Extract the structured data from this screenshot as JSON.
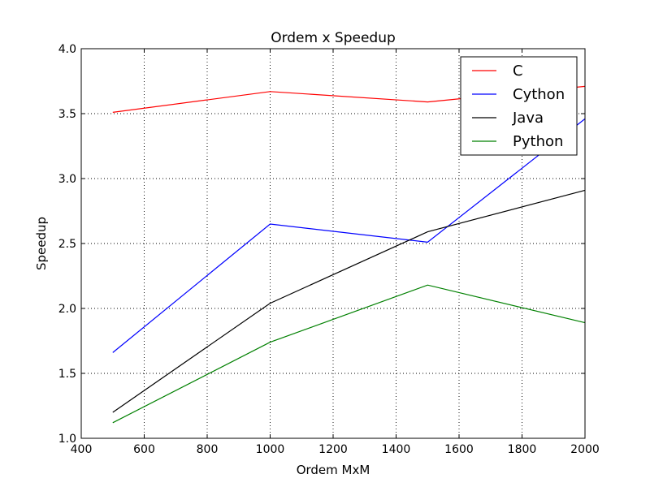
{
  "chart_data": {
    "type": "line",
    "title": "Ordem x Speedup",
    "xlabel": "Ordem MxM",
    "ylabel": "Speedup",
    "xlim": [
      400,
      2000
    ],
    "ylim": [
      1.0,
      4.0
    ],
    "xticks": [
      "400",
      "600",
      "800",
      "1000",
      "1200",
      "1400",
      "1600",
      "1800",
      "2000"
    ],
    "yticks": [
      "1.0",
      "1.5",
      "2.0",
      "2.5",
      "3.0",
      "3.5",
      "4.0"
    ],
    "xtick_values": [
      400,
      600,
      800,
      1000,
      1200,
      1400,
      1600,
      1800,
      2000
    ],
    "ytick_values": [
      1.0,
      1.5,
      2.0,
      2.5,
      3.0,
      3.5,
      4.0
    ],
    "grid": true,
    "legend_position": "top-right",
    "x": [
      500,
      1000,
      1500,
      2000
    ],
    "series": [
      {
        "name": "C",
        "color": "#ff0000",
        "values": [
          3.51,
          3.67,
          3.59,
          3.71
        ]
      },
      {
        "name": "Cython",
        "color": "#0000ff",
        "values": [
          1.66,
          2.65,
          2.51,
          3.46
        ]
      },
      {
        "name": "Java",
        "color": "#000000",
        "values": [
          1.2,
          2.04,
          2.59,
          2.91
        ]
      },
      {
        "name": "Python",
        "color": "#008000",
        "values": [
          1.12,
          1.74,
          2.18,
          1.89
        ]
      }
    ]
  }
}
